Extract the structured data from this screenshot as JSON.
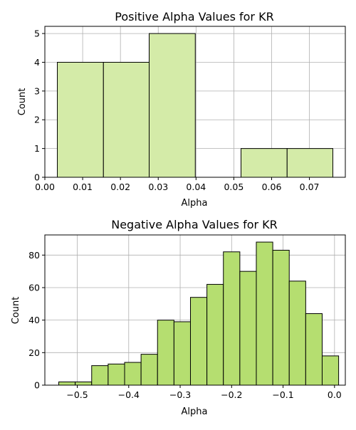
{
  "colors": {
    "positive_bar": "#d4eba8",
    "negative_bar": "#b5de70",
    "edge": "#000000",
    "grid": "#b0b0b0"
  },
  "chart_data": [
    {
      "type": "bar",
      "title": "Positive Alpha Values for KR",
      "xlabel": "Alpha",
      "ylabel": "Count",
      "grid": true,
      "xlim": [
        0.0,
        0.0795
      ],
      "ylim": [
        0,
        5.25
      ],
      "xticks": [
        0.0,
        0.01,
        0.02,
        0.03,
        0.04,
        0.05,
        0.06,
        0.07
      ],
      "xtick_labels": [
        "0.00",
        "0.01",
        "0.02",
        "0.03",
        "0.04",
        "0.05",
        "0.06",
        "0.07"
      ],
      "yticks": [
        0,
        1,
        2,
        3,
        4,
        5
      ],
      "ytick_labels": [
        "0",
        "1",
        "2",
        "3",
        "4",
        "5"
      ],
      "bins": [
        {
          "x0": 0.0033,
          "x1": 0.0155,
          "count": 4
        },
        {
          "x0": 0.0155,
          "x1": 0.0276,
          "count": 4
        },
        {
          "x0": 0.0276,
          "x1": 0.0398,
          "count": 5
        },
        {
          "x0": 0.0398,
          "x1": 0.0519,
          "count": 0
        },
        {
          "x0": 0.0519,
          "x1": 0.0641,
          "count": 1
        },
        {
          "x0": 0.0641,
          "x1": 0.0762,
          "count": 1
        }
      ]
    },
    {
      "type": "bar",
      "title": "Negative Alpha Values for KR",
      "xlabel": "Alpha",
      "ylabel": "Count",
      "grid": true,
      "xlim": [
        -0.563,
        0.021
      ],
      "ylim": [
        0,
        92.4
      ],
      "xticks": [
        -0.5,
        -0.4,
        -0.3,
        -0.2,
        -0.1,
        0.0
      ],
      "xtick_labels": [
        "−0.5",
        "−0.4",
        "−0.3",
        "−0.2",
        "−0.1",
        "0.0"
      ],
      "yticks": [
        0,
        20,
        40,
        60,
        80
      ],
      "ytick_labels": [
        "0",
        "20",
        "40",
        "60",
        "80"
      ],
      "bins": [
        {
          "x0": -0.536,
          "x1": -0.504,
          "count": 2
        },
        {
          "x0": -0.504,
          "x1": -0.472,
          "count": 2
        },
        {
          "x0": -0.472,
          "x1": -0.44,
          "count": 12
        },
        {
          "x0": -0.44,
          "x1": -0.408,
          "count": 13
        },
        {
          "x0": -0.408,
          "x1": -0.376,
          "count": 14
        },
        {
          "x0": -0.376,
          "x1": -0.344,
          "count": 19
        },
        {
          "x0": -0.344,
          "x1": -0.312,
          "count": 40
        },
        {
          "x0": -0.312,
          "x1": -0.28,
          "count": 39
        },
        {
          "x0": -0.28,
          "x1": -0.248,
          "count": 54
        },
        {
          "x0": -0.248,
          "x1": -0.216,
          "count": 62
        },
        {
          "x0": -0.216,
          "x1": -0.184,
          "count": 82
        },
        {
          "x0": -0.184,
          "x1": -0.152,
          "count": 70
        },
        {
          "x0": -0.152,
          "x1": -0.12,
          "count": 88
        },
        {
          "x0": -0.12,
          "x1": -0.088,
          "count": 83
        },
        {
          "x0": -0.088,
          "x1": -0.056,
          "count": 64
        },
        {
          "x0": -0.056,
          "x1": -0.024,
          "count": 44
        },
        {
          "x0": -0.024,
          "x1": 0.008,
          "count": 18
        }
      ]
    }
  ]
}
